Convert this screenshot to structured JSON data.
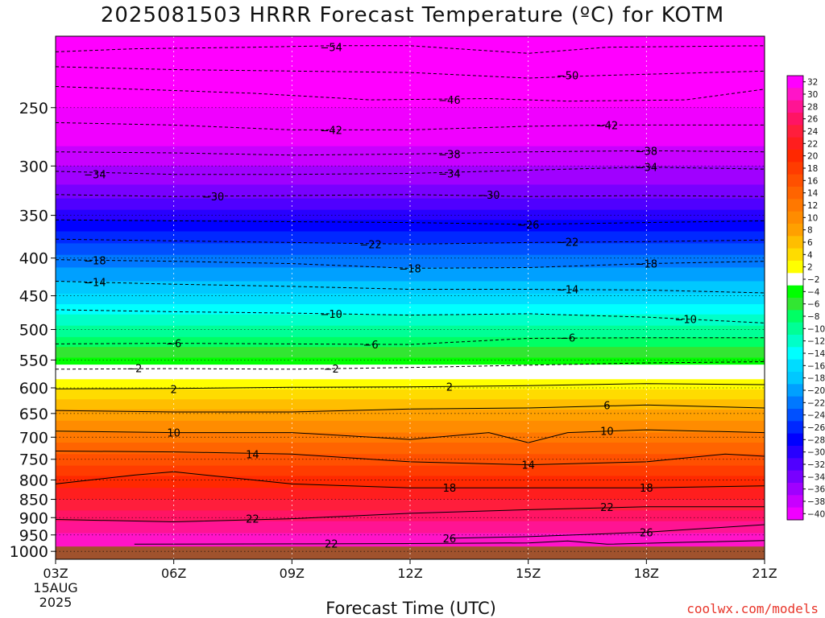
{
  "title": "2025081503 HRRR Forecast Temperature (ºC) for KOTM",
  "credit": "coolwx.com/models",
  "chart_data": {
    "type": "heatmap",
    "title": "2025081503 HRRR Forecast Temperature (ºC) for KOTM",
    "xlabel": "Forecast Time (UTC)",
    "ylabel": "",
    "x_ticks": [
      "03Z",
      "06Z",
      "09Z",
      "12Z",
      "15Z",
      "18Z",
      "21Z"
    ],
    "x_tick_hours": [
      3,
      6,
      9,
      12,
      15,
      18,
      21
    ],
    "x_date_label": [
      "15AUG",
      "2025"
    ],
    "xlim": [
      3,
      21
    ],
    "y_ticks": [
      250,
      300,
      350,
      400,
      450,
      500,
      550,
      600,
      650,
      700,
      750,
      800,
      850,
      900,
      950,
      1000
    ],
    "ylim_hPa": [
      200,
      1025
    ],
    "y_scale": "log, inverted",
    "surface_pressure_hPa": 985,
    "ground_color": "#a0522d",
    "colorbar_ticks": [
      32,
      30,
      28,
      26,
      24,
      22,
      20,
      18,
      16,
      14,
      12,
      10,
      8,
      6,
      4,
      2,
      -2,
      -4,
      -6,
      -8,
      -10,
      -12,
      -14,
      -16,
      -18,
      -20,
      -22,
      -24,
      -26,
      -28,
      -30,
      -32,
      -34,
      -36,
      -38,
      -40
    ],
    "colorbar_colors": [
      "#ff00ff",
      "#ff14c8",
      "#ff1493",
      "#ff1464",
      "#ff1e3c",
      "#ff1e1e",
      "#ff2800",
      "#ff3c00",
      "#ff5000",
      "#ff6400",
      "#ff7800",
      "#ff8c00",
      "#ffa000",
      "#ffbe00",
      "#ffdc00",
      "#ffff00",
      "#ffffff",
      "#00ff00",
      "#32e632",
      "#00ff64",
      "#00ff96",
      "#00ffc8",
      "#00ffff",
      "#00dcff",
      "#00c8ff",
      "#00a0ff",
      "#0078ff",
      "#0050ff",
      "#0028ff",
      "#0000ff",
      "#2800ff",
      "#5000ff",
      "#7800ff",
      "#a000ff",
      "#c800ff",
      "#f000ff"
    ],
    "contours": [
      {
        "label": "54",
        "p_at": [
          [
            3,
            210
          ],
          [
            5,
            208
          ],
          [
            8,
            207
          ],
          [
            10,
            206
          ],
          [
            12,
            206
          ],
          [
            15,
            211
          ],
          [
            17,
            207
          ],
          [
            21,
            206
          ]
        ],
        "label_at": [
          10,
          207
        ]
      },
      {
        "label": "50",
        "p_at": [
          [
            3,
            220
          ],
          [
            6,
            222
          ],
          [
            9,
            223
          ],
          [
            12,
            224
          ],
          [
            15,
            228
          ],
          [
            17,
            226
          ],
          [
            21,
            223
          ]
        ],
        "label_at": [
          16,
          226
        ]
      },
      {
        "label": "46",
        "p_at": [
          [
            3,
            234
          ],
          [
            5,
            236
          ],
          [
            8,
            239
          ],
          [
            11,
            244
          ],
          [
            14,
            243
          ],
          [
            16,
            245
          ],
          [
            19,
            244
          ],
          [
            21,
            236
          ]
        ],
        "label_at": [
          13,
          244
        ]
      },
      {
        "label": "42",
        "p_at": [
          [
            3,
            262
          ],
          [
            6,
            264
          ],
          [
            9,
            268
          ],
          [
            12,
            268
          ],
          [
            15,
            265
          ],
          [
            17,
            264
          ],
          [
            21,
            264
          ]
        ],
        "label_at": [
          10,
          268
        ],
        "label2_at": [
          17,
          264
        ]
      },
      {
        "label": "38",
        "p_at": [
          [
            3,
            287
          ],
          [
            6,
            288
          ],
          [
            9,
            290
          ],
          [
            12,
            289
          ],
          [
            15,
            287
          ],
          [
            18,
            286
          ],
          [
            21,
            287
          ]
        ],
        "label_at": [
          13,
          289
        ],
        "label2_at": [
          18,
          286
        ]
      },
      {
        "label": "34",
        "p_at": [
          [
            3,
            305
          ],
          [
            6,
            308
          ],
          [
            9,
            308
          ],
          [
            12,
            307
          ],
          [
            15,
            304
          ],
          [
            18,
            301
          ],
          [
            21,
            303
          ]
        ],
        "label_at": [
          4,
          308
        ],
        "label2_at": [
          13,
          307
        ],
        "label3_at": [
          18,
          301
        ]
      },
      {
        "label": "30",
        "p_at": [
          [
            3,
            328
          ],
          [
            6,
            330
          ],
          [
            9,
            329
          ],
          [
            12,
            328
          ],
          [
            15,
            330
          ],
          [
            18,
            329
          ],
          [
            21,
            330
          ]
        ],
        "label_at": [
          7,
          330
        ],
        "label2_at": [
          14,
          328
        ]
      },
      {
        "label": "26",
        "p_at": [
          [
            3,
            355
          ],
          [
            6,
            356
          ],
          [
            9,
            357
          ],
          [
            12,
            358
          ],
          [
            15,
            360
          ],
          [
            18,
            358
          ],
          [
            21,
            356
          ]
        ],
        "label_at": [
          15,
          360
        ]
      },
      {
        "label": "22",
        "p_at": [
          [
            3,
            377
          ],
          [
            6,
            379
          ],
          [
            9,
            381
          ],
          [
            12,
            383
          ],
          [
            15,
            381
          ],
          [
            18,
            380
          ],
          [
            21,
            378
          ]
        ],
        "label_at": [
          11,
          383
        ],
        "label2_at": [
          16,
          380
        ]
      },
      {
        "label": "18",
        "p_at": [
          [
            3,
            402
          ],
          [
            6,
            404
          ],
          [
            9,
            407
          ],
          [
            12,
            413
          ],
          [
            15,
            412
          ],
          [
            18,
            407
          ],
          [
            21,
            404
          ]
        ],
        "label_at": [
          4,
          403
        ],
        "label2_at": [
          12,
          413
        ],
        "label3_at": [
          18,
          407
        ]
      },
      {
        "label": "14",
        "p_at": [
          [
            3,
            430
          ],
          [
            6,
            434
          ],
          [
            9,
            437
          ],
          [
            12,
            441
          ],
          [
            15,
            441
          ],
          [
            18,
            442
          ],
          [
            21,
            446
          ]
        ],
        "label_at": [
          4,
          431
        ],
        "label2_at": [
          16,
          441
        ]
      },
      {
        "label": "10",
        "p_at": [
          [
            3,
            470
          ],
          [
            6,
            473
          ],
          [
            9,
            475
          ],
          [
            12,
            478
          ],
          [
            15,
            476
          ],
          [
            18,
            481
          ],
          [
            21,
            490
          ]
        ],
        "label_at": [
          10,
          476
        ],
        "label2_at": [
          19,
          484
        ]
      },
      {
        "label": "6",
        "p_at": [
          [
            3,
            523
          ],
          [
            6,
            522
          ],
          [
            9,
            523
          ],
          [
            12,
            524
          ],
          [
            15,
            514
          ],
          [
            18,
            513
          ],
          [
            21,
            513
          ]
        ],
        "label_at": [
          6,
          522
        ],
        "label2_at": [
          11,
          524
        ],
        "label3_at": [
          16,
          513
        ]
      },
      {
        "label": "2",
        "p_at": [
          [
            3,
            566
          ],
          [
            6,
            565
          ],
          [
            9,
            566
          ],
          [
            12,
            563
          ],
          [
            15,
            559
          ],
          [
            18,
            555
          ],
          [
            21,
            553
          ]
        ],
        "label_at": [
          5,
          564
        ],
        "label2_at": [
          10,
          565
        ]
      },
      {
        "label": "2",
        "p_at": [
          [
            3,
            602
          ],
          [
            6,
            601
          ],
          [
            9,
            599
          ],
          [
            12,
            598
          ],
          [
            15,
            596
          ],
          [
            18,
            592
          ],
          [
            21,
            594
          ]
        ],
        "label_at": [
          6,
          602
        ],
        "label2_at": [
          13,
          598
        ]
      },
      {
        "label": "6",
        "p_at": [
          [
            3,
            644
          ],
          [
            6,
            647
          ],
          [
            9,
            647
          ],
          [
            12,
            641
          ],
          [
            15,
            639
          ],
          [
            18,
            633
          ],
          [
            21,
            639
          ]
        ],
        "label_at": [
          17,
          633
        ]
      },
      {
        "label": "10",
        "p_at": [
          [
            3,
            687
          ],
          [
            6,
            690
          ],
          [
            9,
            690
          ],
          [
            12,
            705
          ],
          [
            14,
            690
          ],
          [
            15,
            712
          ],
          [
            16,
            690
          ],
          [
            18,
            684
          ],
          [
            21,
            690
          ]
        ],
        "label_at": [
          6,
          690
        ],
        "label2_at": [
          17,
          686
        ]
      },
      {
        "label": "14",
        "p_at": [
          [
            3,
            731
          ],
          [
            6,
            733
          ],
          [
            9,
            738
          ],
          [
            12,
            756
          ],
          [
            15,
            763
          ],
          [
            18,
            756
          ],
          [
            20,
            738
          ],
          [
            21,
            743
          ]
        ],
        "label_at": [
          8,
          738
        ],
        "label2_at": [
          15,
          763
        ]
      },
      {
        "label": "18",
        "p_at": [
          [
            3,
            810
          ],
          [
            5,
            788
          ],
          [
            6,
            780
          ],
          [
            9,
            810
          ],
          [
            12,
            820
          ],
          [
            15,
            820
          ],
          [
            18,
            820
          ],
          [
            21,
            815
          ]
        ],
        "label_at": [
          13,
          820
        ],
        "label2_at": [
          18,
          820
        ]
      },
      {
        "label": "22",
        "p_at": [
          [
            3,
            905
          ],
          [
            6,
            912
          ],
          [
            9,
            903
          ],
          [
            12,
            888
          ],
          [
            15,
            878
          ],
          [
            18,
            870
          ],
          [
            21,
            870
          ]
        ],
        "label_at": [
          8,
          903
        ],
        "label2_at": [
          17,
          870
        ]
      },
      {
        "label": "26",
        "p_at": [
          [
            13,
            960
          ],
          [
            15,
            955
          ],
          [
            18,
            942
          ],
          [
            21,
            920
          ]
        ],
        "label_at": [
          13,
          960
        ],
        "label2_at": [
          18,
          942
        ]
      },
      {
        "label": "22",
        "p_at": [
          [
            5,
            978
          ],
          [
            9,
            977
          ],
          [
            12,
            976
          ],
          [
            15,
            974
          ],
          [
            16,
            968
          ],
          [
            17,
            978
          ],
          [
            19,
            972
          ],
          [
            21,
            967
          ]
        ],
        "label_at": [
          10,
          976
        ]
      }
    ],
    "bands": [
      {
        "p_top": 200,
        "color": "#ff00ff"
      },
      {
        "p_top": 250,
        "color": "#f000ff"
      },
      {
        "p_top": 282,
        "color": "#c800ff"
      },
      {
        "p_top": 300,
        "color": "#a000ff"
      },
      {
        "p_top": 318,
        "color": "#7800ff"
      },
      {
        "p_top": 332,
        "color": "#5000ff"
      },
      {
        "p_top": 344,
        "color": "#2800ff"
      },
      {
        "p_top": 355,
        "color": "#0000ff"
      },
      {
        "p_top": 368,
        "color": "#0028ff"
      },
      {
        "p_top": 382,
        "color": "#0050ff"
      },
      {
        "p_top": 396,
        "color": "#0078ff"
      },
      {
        "p_top": 412,
        "color": "#00a0ff"
      },
      {
        "p_top": 430,
        "color": "#00c8ff"
      },
      {
        "p_top": 447,
        "color": "#00dcff"
      },
      {
        "p_top": 462,
        "color": "#00ffff"
      },
      {
        "p_top": 477,
        "color": "#00ffc8"
      },
      {
        "p_top": 494,
        "color": "#00ff96"
      },
      {
        "p_top": 512,
        "color": "#00ff64"
      },
      {
        "p_top": 528,
        "color": "#32e632"
      },
      {
        "p_top": 546,
        "color": "#00ff00"
      },
      {
        "p_top": 558,
        "color": "#ffffff"
      },
      {
        "p_top": 584,
        "color": "#ffff00"
      },
      {
        "p_top": 603,
        "color": "#ffdc00"
      },
      {
        "p_top": 622,
        "color": "#ffbe00"
      },
      {
        "p_top": 642,
        "color": "#ffa000"
      },
      {
        "p_top": 665,
        "color": "#ff8c00"
      },
      {
        "p_top": 690,
        "color": "#ff7800"
      },
      {
        "p_top": 712,
        "color": "#ff6400"
      },
      {
        "p_top": 738,
        "color": "#ff5000"
      },
      {
        "p_top": 765,
        "color": "#ff3c00"
      },
      {
        "p_top": 790,
        "color": "#ff2800"
      },
      {
        "p_top": 820,
        "color": "#ff1e1e"
      },
      {
        "p_top": 850,
        "color": "#ff1e3c"
      },
      {
        "p_top": 880,
        "color": "#ff1464"
      },
      {
        "p_top": 910,
        "color": "#ff1493"
      },
      {
        "p_top": 945,
        "color": "#ff14c8"
      }
    ]
  }
}
